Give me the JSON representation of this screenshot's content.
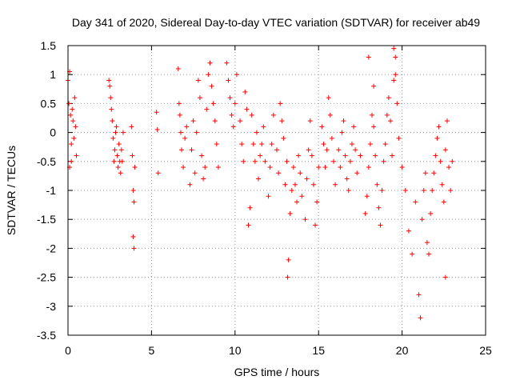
{
  "chart_data": {
    "type": "scatter",
    "title": "Day 341 of 2020, Sidereal Day-to-day VTEC variation (SDTVAR) for receiver ab49",
    "xlabel": "GPS time / hours",
    "ylabel": "SDTVAR / TECUs",
    "xlim": [
      0,
      25
    ],
    "ylim": [
      -3.5,
      1.5
    ],
    "xticks": [
      0,
      5,
      10,
      15,
      20,
      25
    ],
    "xtick_labels": [
      "0",
      "5",
      "10",
      "15",
      "20",
      "25"
    ],
    "yticks": [
      1.5,
      1,
      0.5,
      0,
      -0.5,
      -1,
      -1.5,
      -2,
      -2.5,
      -3,
      -3.5
    ],
    "ytick_labels": [
      "1.5",
      "1",
      "0.5",
      "0",
      "-0.5",
      "-1",
      "-1.5",
      "-2",
      "-2.5",
      "-3",
      "-3.5"
    ],
    "grid": true,
    "marker": "+",
    "color": "#ff0000",
    "series": [
      {
        "name": "SDTVAR",
        "x": [
          0.0,
          0.05,
          0.1,
          0.15,
          0.2,
          0.25,
          0.3,
          0.35,
          0.4,
          0.45,
          0.5,
          0.1,
          0.2,
          2.45,
          2.5,
          2.55,
          2.6,
          2.65,
          2.7,
          2.75,
          2.8,
          2.85,
          2.9,
          2.95,
          3.0,
          3.05,
          3.1,
          3.15,
          3.2,
          3.25,
          3.3,
          3.8,
          3.85,
          3.9,
          3.95,
          4.0,
          3.9,
          3.95,
          5.3,
          5.35,
          5.4,
          6.6,
          6.65,
          6.7,
          6.75,
          6.8,
          6.9,
          7.0,
          7.1,
          7.3,
          7.4,
          7.5,
          7.6,
          7.7,
          7.8,
          7.9,
          8.0,
          8.1,
          8.2,
          8.3,
          8.4,
          8.5,
          8.6,
          8.7,
          8.8,
          8.9,
          9.0,
          9.5,
          9.6,
          9.7,
          9.8,
          9.9,
          10.0,
          10.1,
          10.3,
          10.4,
          10.5,
          10.6,
          10.7,
          10.8,
          10.9,
          11.0,
          11.1,
          11.2,
          11.3,
          11.4,
          11.5,
          11.6,
          11.7,
          11.8,
          12.0,
          12.1,
          12.2,
          12.3,
          12.5,
          12.6,
          12.7,
          12.8,
          12.9,
          13.0,
          13.1,
          13.15,
          13.2,
          13.3,
          13.4,
          13.5,
          13.6,
          13.7,
          13.8,
          13.9,
          14.0,
          14.2,
          14.3,
          14.4,
          14.5,
          14.6,
          14.7,
          14.8,
          14.9,
          15.0,
          15.2,
          15.3,
          15.4,
          15.5,
          15.6,
          15.7,
          15.8,
          15.9,
          16.0,
          16.2,
          16.3,
          16.4,
          16.5,
          16.6,
          16.7,
          16.8,
          16.9,
          17.0,
          17.1,
          17.2,
          17.3,
          17.5,
          17.8,
          17.9,
          18.0,
          18.1,
          18.2,
          18.3,
          18.4,
          18.5,
          18.6,
          18.7,
          18.8,
          18.9,
          19.0,
          19.1,
          19.2,
          19.3,
          19.4,
          19.5,
          19.6,
          19.7,
          19.8,
          20.0,
          20.2,
          20.4,
          20.6,
          20.8,
          21.0,
          21.1,
          21.2,
          21.3,
          21.4,
          21.5,
          21.6,
          21.7,
          21.8,
          21.9,
          22.0,
          22.1,
          22.2,
          22.3,
          22.4,
          22.5,
          22.6,
          22.7,
          22.8,
          22.9,
          23.0,
          18.0,
          18.3,
          19.5,
          19.6,
          22.6
        ],
        "y": [
          0.9,
          0.5,
          -0.6,
          0.3,
          -0.2,
          0.4,
          0.2,
          -0.1,
          0.6,
          0.1,
          -0.4,
          1.05,
          -0.5,
          0.9,
          0.8,
          0.6,
          0.4,
          0.2,
          -0.1,
          -0.5,
          -0.3,
          0.0,
          0.1,
          -0.4,
          -0.6,
          -0.2,
          -0.5,
          -0.7,
          -0.3,
          -0.5,
          0.0,
          0.1,
          -0.4,
          -1.0,
          -1.2,
          -0.6,
          -1.8,
          -2.0,
          0.35,
          0.05,
          -0.7,
          1.1,
          0.5,
          0.3,
          0.0,
          -0.3,
          -0.6,
          -0.1,
          0.1,
          -0.9,
          -0.3,
          0.2,
          -0.7,
          0.0,
          0.9,
          0.6,
          -0.4,
          -0.8,
          -0.6,
          0.4,
          1.0,
          1.2,
          0.8,
          0.5,
          0.2,
          -0.2,
          -0.6,
          1.2,
          0.9,
          0.6,
          0.3,
          0.1,
          0.5,
          1.0,
          0.2,
          -0.2,
          -0.5,
          0.7,
          0.4,
          -1.6,
          -1.3,
          0.3,
          -0.2,
          -0.5,
          0.0,
          -0.8,
          -0.4,
          -0.2,
          0.1,
          -0.5,
          -1.1,
          -0.6,
          -0.2,
          0.3,
          -0.3,
          -0.7,
          0.5,
          0.2,
          -0.1,
          -0.9,
          -0.5,
          -2.5,
          -2.2,
          -1.4,
          -1.0,
          -0.6,
          -0.9,
          -1.2,
          -0.4,
          -0.7,
          -1.1,
          -1.5,
          -0.8,
          -0.3,
          0.2,
          -0.4,
          -0.9,
          -1.6,
          -1.2,
          -0.6,
          0.1,
          -0.2,
          -0.6,
          -0.3,
          0.6,
          0.3,
          -0.1,
          -0.5,
          -0.9,
          -0.3,
          -0.6,
          0.0,
          0.2,
          -0.4,
          -0.8,
          -1.0,
          -0.5,
          -0.2,
          0.1,
          -0.3,
          -0.7,
          -0.4,
          -1.4,
          -1.1,
          -0.6,
          -0.2,
          0.3,
          0.1,
          -0.4,
          -0.9,
          -1.3,
          -1.6,
          -1.0,
          -0.5,
          -0.2,
          0.3,
          0.6,
          0.2,
          -0.4,
          0.9,
          1.3,
          0.5,
          -0.1,
          -0.6,
          -1.0,
          -1.7,
          -2.1,
          -1.2,
          -2.8,
          -3.2,
          -1.5,
          -1.0,
          -0.7,
          -1.9,
          -2.1,
          -1.4,
          -1.0,
          -0.7,
          -0.4,
          -0.1,
          0.1,
          -0.5,
          -0.9,
          -1.2,
          -0.3,
          0.2,
          -0.6,
          -1.0,
          -0.5,
          1.3,
          0.8,
          1.45,
          1.0,
          -2.5
        ]
      }
    ]
  }
}
